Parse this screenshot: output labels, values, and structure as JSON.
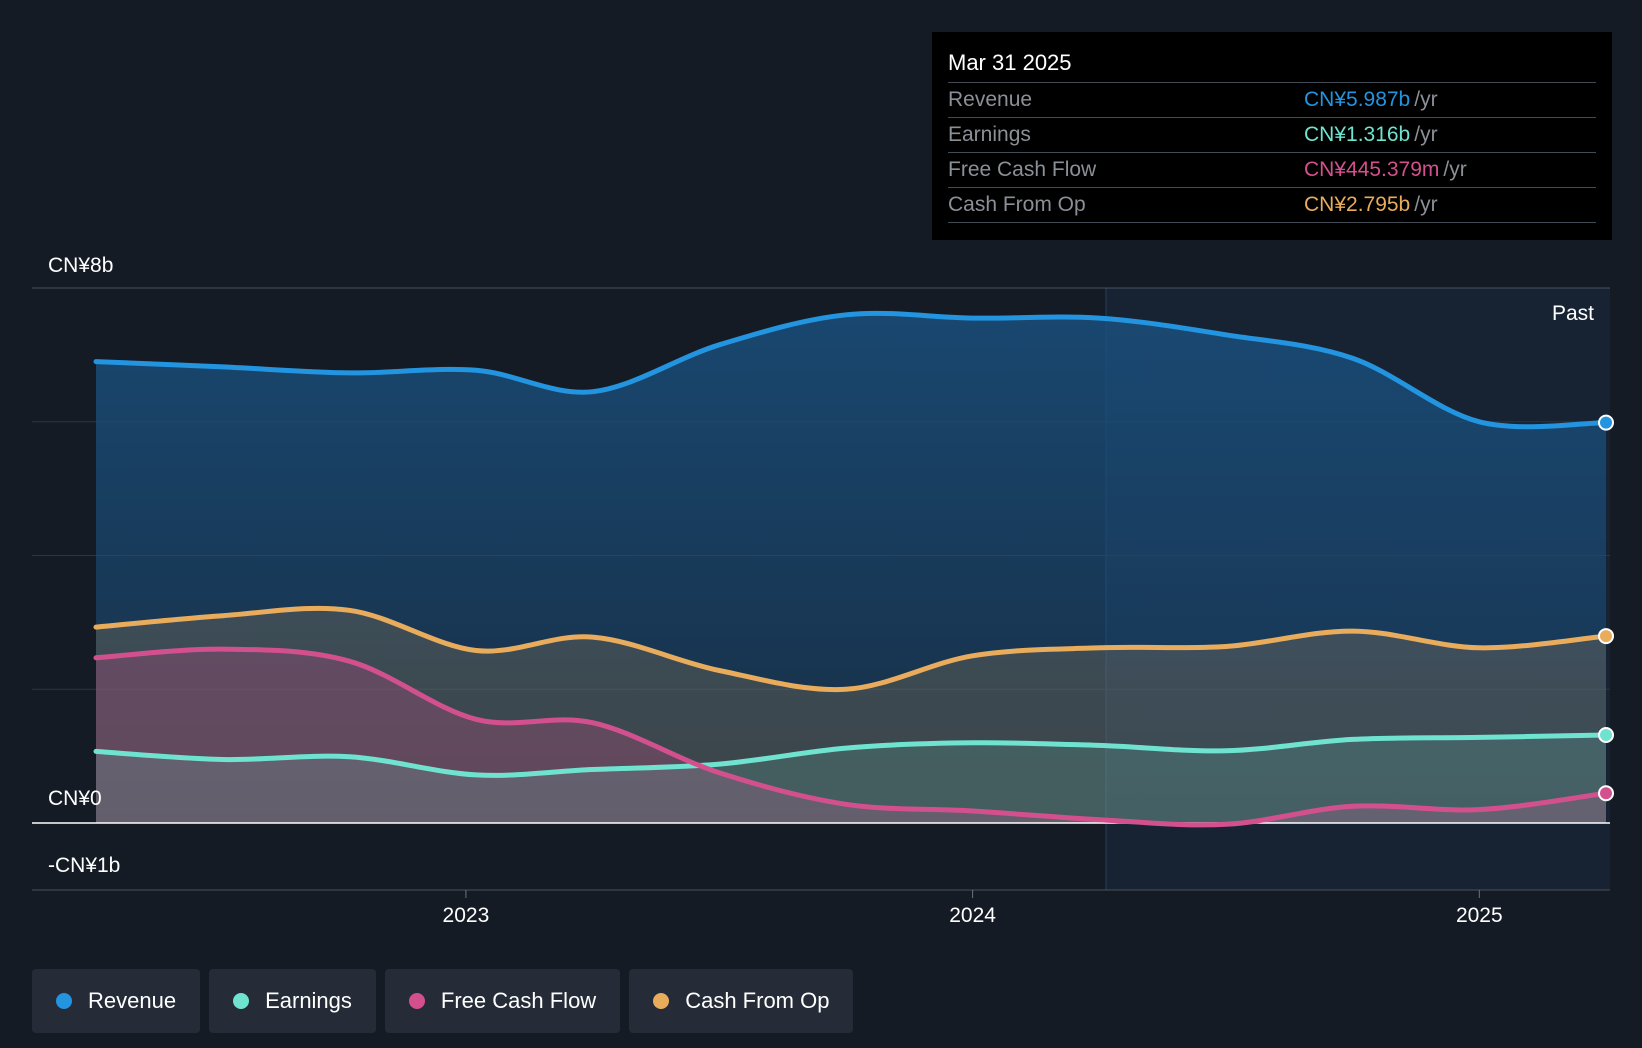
{
  "chart_data": {
    "type": "area",
    "title": "",
    "y_unit": "CN¥",
    "ylim": [
      -1,
      8
    ],
    "y_tick_labels": [
      "CN¥8b",
      "CN¥0",
      "-CN¥1b"
    ],
    "x_tick_labels": [
      "2023",
      "2024",
      "2025"
    ],
    "x_range": [
      2022.27,
      2025.25
    ],
    "past_label": "Past",
    "x": [
      2022.27,
      2022.52,
      2022.77,
      2023.02,
      2023.25,
      2023.5,
      2023.75,
      2024.0,
      2024.25,
      2024.5,
      2024.75,
      2025.0,
      2025.25
    ],
    "series": [
      {
        "name": "Revenue",
        "color": "#2394df",
        "values": [
          6.9,
          6.82,
          6.73,
          6.77,
          6.45,
          7.15,
          7.6,
          7.55,
          7.55,
          7.3,
          6.95,
          6.0,
          5.987
        ]
      },
      {
        "name": "Earnings",
        "color": "#6fe3cf",
        "values": [
          1.07,
          0.95,
          0.99,
          0.72,
          0.8,
          0.88,
          1.12,
          1.2,
          1.16,
          1.08,
          1.25,
          1.28,
          1.316
        ]
      },
      {
        "name": "Free Cash Flow",
        "color": "#d3508e",
        "values": [
          2.47,
          2.6,
          2.42,
          1.55,
          1.5,
          0.75,
          0.28,
          0.18,
          0.05,
          -0.02,
          0.25,
          0.2,
          0.445
        ]
      },
      {
        "name": "Cash From Op",
        "color": "#e8ac5c",
        "values": [
          2.93,
          3.1,
          3.18,
          2.58,
          2.78,
          2.28,
          2.0,
          2.5,
          2.62,
          2.64,
          2.87,
          2.62,
          2.795
        ]
      }
    ]
  },
  "tooltip": {
    "date": "Mar 31 2025",
    "rows": [
      {
        "label": "Revenue",
        "value": "CN¥5.987b",
        "unit": "/yr",
        "color": "#2394df"
      },
      {
        "label": "Earnings",
        "value": "CN¥1.316b",
        "unit": "/yr",
        "color": "#6fe3cf"
      },
      {
        "label": "Free Cash Flow",
        "value": "CN¥445.379m",
        "unit": "/yr",
        "color": "#d3508e"
      },
      {
        "label": "Cash From Op",
        "value": "CN¥2.795b",
        "unit": "/yr",
        "color": "#e8ac5c"
      }
    ]
  },
  "legend": [
    {
      "label": "Revenue",
      "color": "#2394df"
    },
    {
      "label": "Earnings",
      "color": "#6fe3cf"
    },
    {
      "label": "Free Cash Flow",
      "color": "#d3508e"
    },
    {
      "label": "Cash From Op",
      "color": "#e8ac5c"
    }
  ]
}
